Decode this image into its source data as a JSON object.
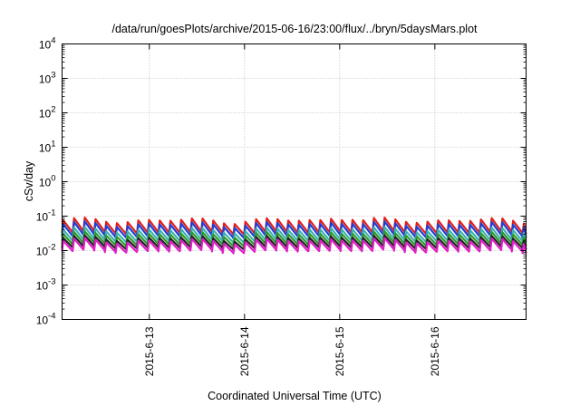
{
  "chart_data": {
    "type": "line",
    "title": "/data/run/goesPlots/archive/2015-06-16/23:00/flux/../bryn/5daysMars.plot",
    "xlabel": "Coordinated Universal Time (UTC)",
    "ylabel": "cSv/day",
    "y_scale": "log",
    "ylim": [
      0.0001,
      10000
    ],
    "xlim": [
      "2015-06-12 02:00",
      "2015-06-16 23:00"
    ],
    "x_ticks": [
      "2015-6-13",
      "2015-6-14",
      "2015-6-15",
      "2015-6-16"
    ],
    "y_ticks": [
      {
        "base": "10",
        "exp": "-4"
      },
      {
        "base": "10",
        "exp": "-3"
      },
      {
        "base": "10",
        "exp": "-2"
      },
      {
        "base": "10",
        "exp": "-1"
      },
      {
        "base": "10",
        "exp": "0"
      },
      {
        "base": "10",
        "exp": "1"
      },
      {
        "base": "10",
        "exp": "2"
      },
      {
        "base": "10",
        "exp": "3"
      },
      {
        "base": "10",
        "exp": "4"
      }
    ],
    "grid": true,
    "legend": "none",
    "sawtooth_period_hours": 2.7,
    "series": [
      {
        "color": "#e0201c",
        "peak": 0.075,
        "trough": 0.033
      },
      {
        "color": "#1f3fd6",
        "peak": 0.058,
        "trough": 0.026
      },
      {
        "color": "#3fb0b0",
        "peak": 0.04,
        "trough": 0.019
      },
      {
        "color": "#2a9a2a",
        "peak": 0.03,
        "trough": 0.015
      },
      {
        "color": "#222222",
        "peak": 0.023,
        "trough": 0.012
      },
      {
        "color": "#e020c8",
        "peak": 0.019,
        "trough": 0.0095
      }
    ]
  }
}
